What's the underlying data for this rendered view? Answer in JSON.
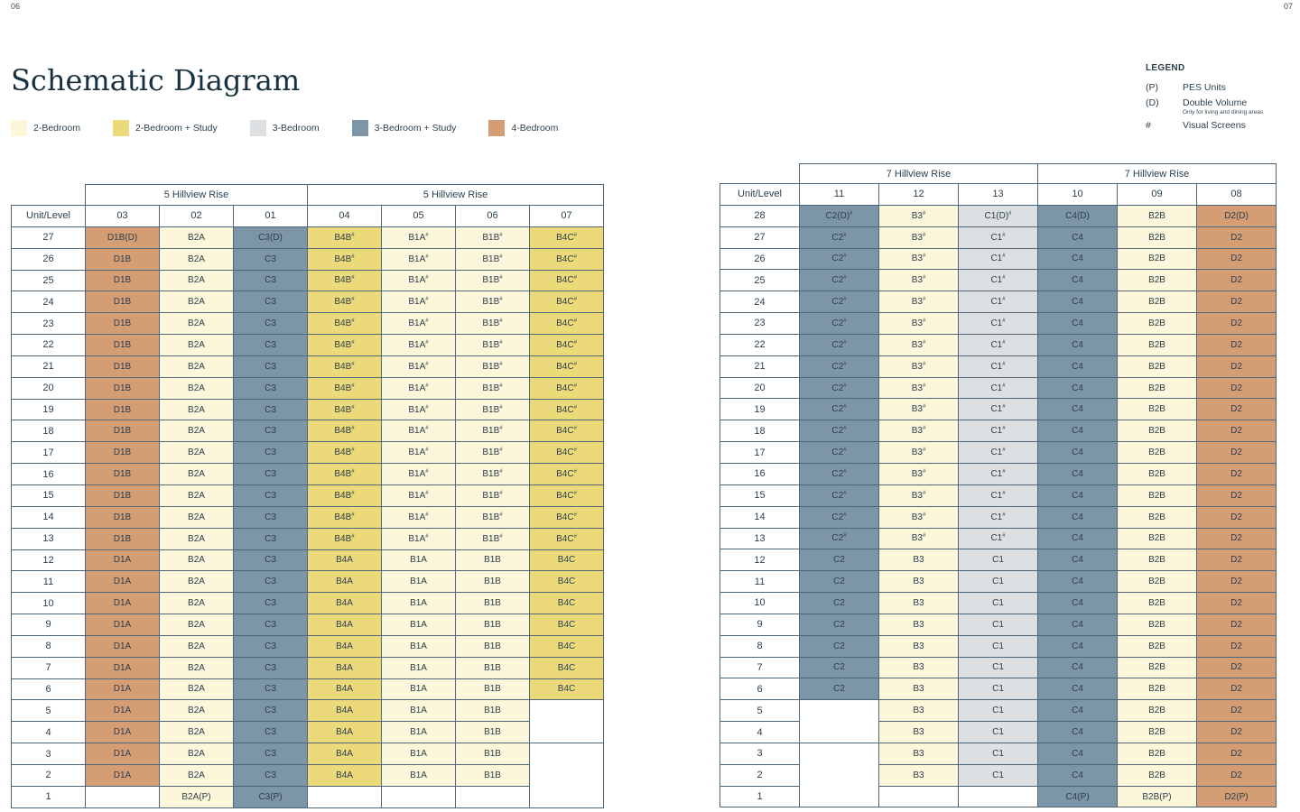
{
  "page": {
    "left_number": "06",
    "right_number": "07"
  },
  "title": "Schematic Diagram",
  "colors": {
    "2B": "#fcf6da",
    "2BS": "#ebd97a",
    "3B": "#dce0e3",
    "3BS": "#7c95a7",
    "4B": "#d59d73"
  },
  "color_key": [
    {
      "label": "2-Bedroom",
      "code": "2B"
    },
    {
      "label": "2-Bedroom + Study",
      "code": "2BS"
    },
    {
      "label": "3-Bedroom",
      "code": "3B"
    },
    {
      "label": "3-Bedroom + Study",
      "code": "3BS"
    },
    {
      "label": "4-Bedroom",
      "code": "4B"
    }
  ],
  "legend": {
    "title": "LEGEND",
    "items": [
      {
        "symbol": "(P)",
        "label": "PES Units",
        "note": ""
      },
      {
        "symbol": "(D)",
        "label": "Double Volume",
        "note": "Only for living and dining areas"
      },
      {
        "symbol": "#",
        "label": "Visual Screens",
        "note": ""
      }
    ]
  },
  "tables": [
    {
      "corner_label": "Unit/Level",
      "groups": [
        {
          "label": "5 Hillview Rise",
          "span": 3
        },
        {
          "label": "5 Hillview Rise",
          "span": 4
        }
      ],
      "units": [
        {
          "unit": "03",
          "color": "4B",
          "cells": [
            [
              "D1B(D)",
              27,
              27
            ],
            [
              "D1B",
              13,
              26,
              "#"
            ],
            [
              "D1A",
              2,
              12
            ],
            [
              "",
              1,
              1,
              "",
              1
            ]
          ]
        },
        {
          "unit": "02",
          "color": "2B",
          "cells": [
            [
              "B2A(P)",
              1,
              27
            ]
          ]
        },
        {
          "unit": "01",
          "color": "3BS",
          "cells": [
            [
              "C3(D)",
              27,
              27
            ],
            [
              "C3",
              2,
              26
            ],
            [
              "C3(P)",
              1,
              1
            ]
          ]
        },
        {
          "unit": "04",
          "color": "2BS",
          "cells": [
            [
              "B4B",
              13,
              27,
              "#"
            ],
            [
              "B4A",
              2,
              12
            ],
            [
              "",
              1,
              1,
              "",
              1
            ]
          ]
        },
        {
          "unit": "05",
          "color": "2B",
          "cells": [
            [
              "B1A",
              13,
              27,
              "#"
            ],
            [
              "B1A",
              2,
              12
            ],
            [
              "",
              1,
              1,
              "",
              1
            ]
          ]
        },
        {
          "unit": "06",
          "color": "2B",
          "cells": [
            [
              "B1B",
              13,
              27,
              "#"
            ],
            [
              "B1B",
              2,
              12
            ],
            [
              "",
              1,
              1,
              "",
              1
            ]
          ]
        },
        {
          "unit": "07",
          "color": "2BS",
          "cells": [
            [
              "B4C",
              13,
              27,
              "#"
            ],
            [
              "B4C",
              6,
              12
            ],
            [
              "",
              4,
              5,
              "",
              1
            ],
            [
              "",
              1,
              3,
              "",
              1
            ]
          ]
        }
      ]
    },
    {
      "corner_label": "Unit/Level",
      "groups": [
        {
          "label": "7 Hillview Rise",
          "span": 3
        },
        {
          "label": "7 Hillview Rise",
          "span": 3
        }
      ],
      "units": [
        {
          "unit": "11",
          "color": "3BS",
          "cells": [
            [
              "C2(D)",
              28,
              28,
              "#"
            ],
            [
              "C2",
              13,
              27,
              "#"
            ],
            [
              "C2",
              6,
              12
            ],
            [
              "",
              4,
              5,
              "",
              1
            ],
            [
              "",
              1,
              3,
              "",
              1
            ]
          ]
        },
        {
          "unit": "12",
          "color": "2B",
          "cells": [
            [
              "B3",
              13,
              28,
              "#"
            ],
            [
              "B3",
              2,
              12
            ],
            [
              "",
              1,
              1,
              "",
              1
            ]
          ]
        },
        {
          "unit": "13",
          "color": "3B",
          "cells": [
            [
              "C1(D)",
              28,
              28,
              "#"
            ],
            [
              "C1",
              13,
              27,
              "#"
            ],
            [
              "C1",
              2,
              12
            ],
            [
              "",
              1,
              1,
              "",
              1
            ]
          ]
        },
        {
          "unit": "10",
          "color": "3BS",
          "cells": [
            [
              "C4(D)",
              28,
              28
            ],
            [
              "C4",
              2,
              27
            ],
            [
              "C4(P)",
              1,
              1
            ]
          ]
        },
        {
          "unit": "09",
          "color": "2B",
          "cells": [
            [
              "B2B",
              2,
              28
            ],
            [
              "B2B(P)",
              1,
              1
            ]
          ]
        },
        {
          "unit": "08",
          "color": "4B",
          "cells": [
            [
              "D2(D)",
              28,
              28
            ],
            [
              "D2",
              2,
              27
            ],
            [
              "D2(P)",
              1,
              1
            ]
          ]
        }
      ]
    }
  ]
}
